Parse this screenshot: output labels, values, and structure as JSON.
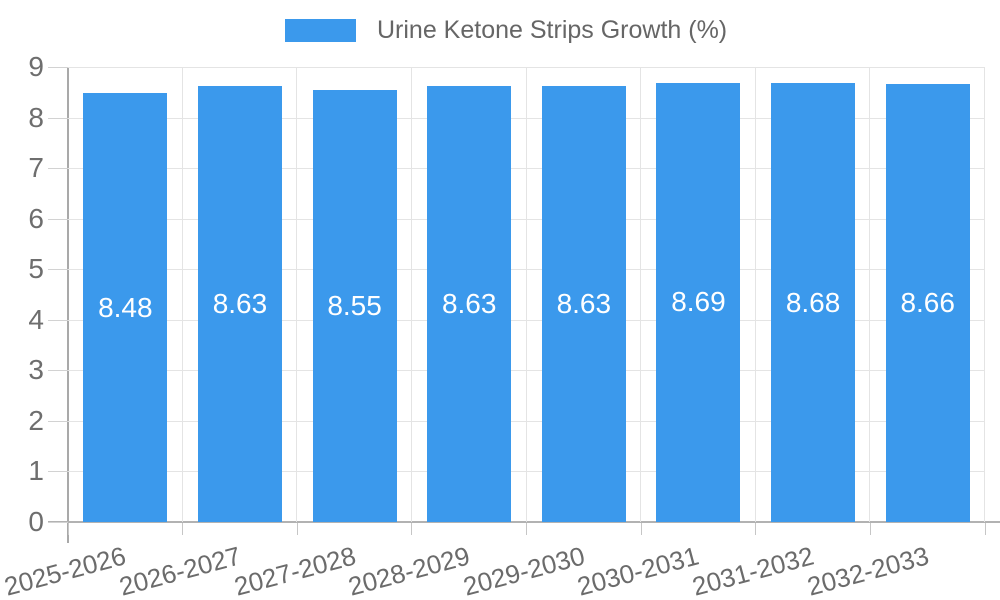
{
  "legend": {
    "label": "Urine Ketone Strips Growth (%)"
  },
  "chart_data": {
    "type": "bar",
    "title": "Urine Ketone Strips Growth (%)",
    "series_name": "Urine Ketone Strips Growth (%)",
    "categories": [
      "2025-2026",
      "2026-2027",
      "2027-2028",
      "2028-2029",
      "2029-2030",
      "2030-2031",
      "2031-2032",
      "2032-2033"
    ],
    "values": [
      8.48,
      8.63,
      8.55,
      8.63,
      8.63,
      8.69,
      8.68,
      8.66
    ],
    "value_labels": [
      "8.48",
      "8.63",
      "8.55",
      "8.63",
      "8.63",
      "8.69",
      "8.68",
      "8.66"
    ],
    "xlabel": "",
    "ylabel": "",
    "ylim": [
      0,
      9
    ],
    "y_ticks": [
      0,
      1,
      2,
      3,
      4,
      5,
      6,
      7,
      8,
      9
    ],
    "grid": true,
    "legend_position": "top",
    "bar_color": "#3b99ec",
    "value_label_color": "#ffffff",
    "axis_text_color": "#6b6b6b",
    "grid_color": "#e4e4e4"
  }
}
